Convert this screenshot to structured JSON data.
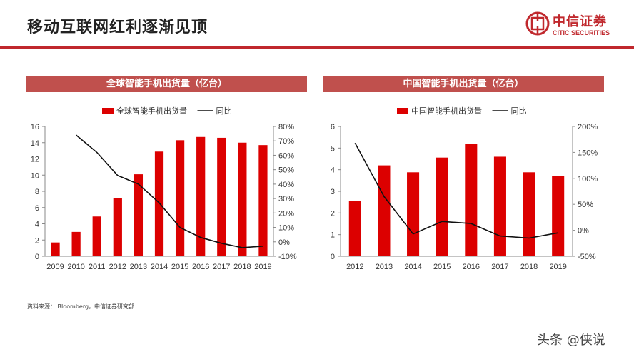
{
  "page": {
    "title": "移动互联网红利逐渐见顶",
    "source": "资料来源： Bloomberg，中信证券研究部",
    "watermark": "头条 @侠说"
  },
  "logo": {
    "name_cn": "中信证券",
    "name_en": "CITIC SECURITIES",
    "color": "#c0282d"
  },
  "colors": {
    "bar": "#dc0000",
    "line": "#111111",
    "header": "#c0504d",
    "accent": "#c0282d"
  },
  "chart_data": [
    {
      "type": "bar",
      "header": "全球智能手机出货量（亿台）",
      "categories": [
        "2009",
        "2010",
        "2011",
        "2012",
        "2013",
        "2014",
        "2015",
        "2016",
        "2017",
        "2018",
        "2019"
      ],
      "series": [
        {
          "name": "全球智能手机出货量",
          "type": "bar",
          "axis": "left",
          "values": [
            1.7,
            3.0,
            4.9,
            7.2,
            10.1,
            12.9,
            14.3,
            14.7,
            14.6,
            14.0,
            13.7
          ]
        },
        {
          "name": "同比",
          "type": "line",
          "axis": "right",
          "values": [
            null,
            74,
            62,
            46,
            40,
            27,
            10,
            3,
            -1,
            -4,
            -3
          ]
        }
      ],
      "ylim": [
        0,
        16
      ],
      "yticks": [
        0,
        2,
        4,
        6,
        8,
        10,
        12,
        14,
        16
      ],
      "y2lim": [
        -10,
        80
      ],
      "y2ticks": [
        -10,
        0,
        10,
        20,
        30,
        40,
        50,
        60,
        70,
        80
      ],
      "y2tick_labels": [
        "-10%",
        "0%",
        "10%",
        "20%",
        "30%",
        "40%",
        "50%",
        "60%",
        "70%",
        "80%"
      ],
      "legend": "top-center",
      "grid": false
    },
    {
      "type": "bar",
      "header": "中国智能手机出货量（亿台）",
      "categories": [
        "2012",
        "2013",
        "2014",
        "2015",
        "2016",
        "2017",
        "2018",
        "2019"
      ],
      "series": [
        {
          "name": "中国智能手机出货量",
          "type": "bar",
          "axis": "left",
          "values": [
            2.55,
            4.2,
            3.88,
            4.56,
            5.2,
            4.6,
            3.88,
            3.7
          ]
        },
        {
          "name": "同比",
          "type": "line",
          "axis": "right",
          "values": [
            168,
            65,
            -7,
            17,
            13,
            -11,
            -15,
            -5
          ]
        }
      ],
      "ylim": [
        0,
        6
      ],
      "yticks": [
        0,
        1,
        2,
        3,
        4,
        5,
        6
      ],
      "y2lim": [
        -50,
        200
      ],
      "y2ticks": [
        -50,
        0,
        50,
        100,
        150,
        200
      ],
      "y2tick_labels": [
        "-50%",
        "0%",
        "50%",
        "100%",
        "150%",
        "200%"
      ],
      "legend": "top-center",
      "grid": false
    }
  ]
}
